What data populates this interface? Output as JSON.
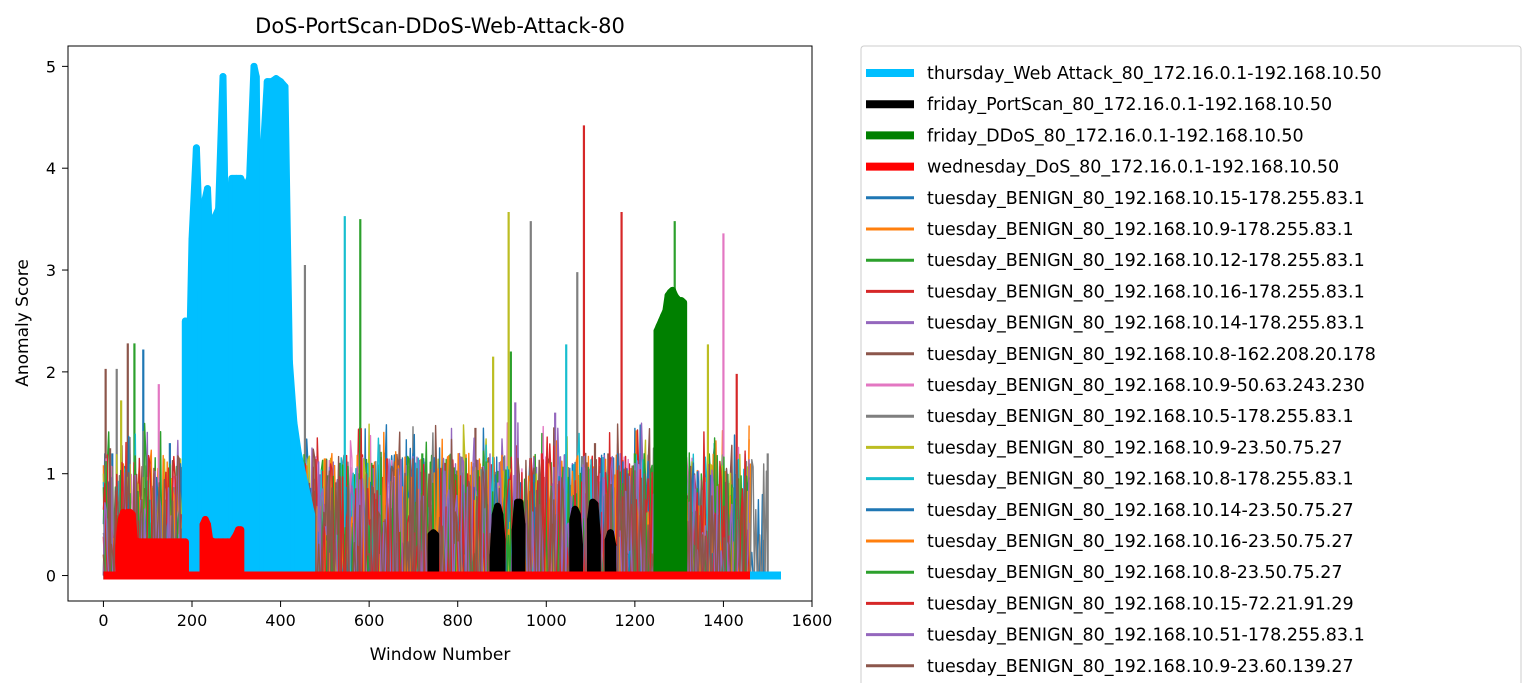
{
  "chart_data": {
    "type": "line",
    "title": "DoS-PortScan-DDoS-Web-Attack-80",
    "xlabel": "Window Number",
    "ylabel": "Anomaly Score",
    "xlim": [
      -80,
      1600
    ],
    "ylim": [
      -0.25,
      5.2
    ],
    "xticks": [
      0,
      200,
      400,
      600,
      800,
      1000,
      1200,
      1400,
      1600
    ],
    "yticks": [
      0,
      1,
      2,
      3,
      4,
      5
    ],
    "xtick_labels": [
      "0",
      "200",
      "400",
      "600",
      "800",
      "1000",
      "1200",
      "1400",
      "1600"
    ],
    "ytick_labels": [
      "0",
      "1",
      "2",
      "3",
      "4",
      "5"
    ],
    "grid": false,
    "legend_position": "outside-right",
    "attack_series": [
      {
        "name": "thursday_Web Attack_80_172.16.0.1-192.168.10.50",
        "color": "#00bfff",
        "baseline": {
          "x": [
            0,
            1530
          ],
          "y": [
            0,
            0
          ]
        },
        "spikes": [
          {
            "x": [
              185,
              190,
              200,
              210,
              215,
              220,
              230,
              235,
              240,
              250,
              260,
              270,
              275,
              280,
              290,
              300,
              310,
              320,
              330,
              340,
              345,
              350,
              360,
              370,
              380,
              390,
              400,
              410,
              420,
              430,
              440,
              450,
              460,
              470
            ],
            "y": [
              2.5,
              1.2,
              3.3,
              4.2,
              3.6,
              2.8,
              3.7,
              3.8,
              3.3,
              3.5,
              3.6,
              4.9,
              3.5,
              3.2,
              3.9,
              3.9,
              3.9,
              3.8,
              3.9,
              5.0,
              4.9,
              3.1,
              4.1,
              4.85,
              4.85,
              4.88,
              4.85,
              4.8,
              2.1,
              1.5,
              1.2,
              1.0,
              0.8,
              0.6
            ]
          }
        ]
      },
      {
        "name": "friday_PortScan_80_172.16.0.1-192.168.10.50",
        "color": "#000000",
        "baseline": {
          "x": [
            0,
            1460
          ],
          "y": [
            0,
            0
          ]
        },
        "spikes": [
          {
            "x": [
              740,
              745,
              750
            ],
            "y": [
              0.4,
              0.42,
              0.4
            ]
          },
          {
            "x": [
              880,
              885,
              890,
              895,
              900
            ],
            "y": [
              0.2,
              0.6,
              0.68,
              0.6,
              0.35
            ]
          },
          {
            "x": [
              930,
              935,
              940,
              945
            ],
            "y": [
              0.45,
              0.72,
              0.72,
              0.5
            ]
          },
          {
            "x": [
              1060,
              1065,
              1070,
              1075
            ],
            "y": [
              0.55,
              0.65,
              0.6,
              0.3
            ]
          },
          {
            "x": [
              1100,
              1105,
              1110,
              1115
            ],
            "y": [
              0.55,
              0.72,
              0.7,
              0.4
            ]
          },
          {
            "x": [
              1140,
              1145,
              1150
            ],
            "y": [
              0.35,
              0.42,
              0.3
            ]
          }
        ]
      },
      {
        "name": "friday_DDoS_80_172.16.0.1-192.168.10.50",
        "color": "#008000",
        "baseline": {
          "x": [
            0,
            1460
          ],
          "y": [
            0,
            0
          ]
        },
        "spikes": [
          {
            "x": [
              1250,
              1255,
              1260,
              1265,
              1270,
              1275,
              1280,
              1285,
              1290,
              1295,
              1300,
              1305,
              1310
            ],
            "y": [
              2.4,
              2.45,
              2.5,
              2.55,
              2.6,
              2.75,
              2.78,
              2.8,
              2.75,
              2.72,
              2.7,
              2.7,
              2.68
            ]
          }
        ]
      },
      {
        "name": "wednesday_DoS_80_172.16.0.1-192.168.10.50",
        "color": "#ff0000",
        "baseline": {
          "x": [
            0,
            1460
          ],
          "y": [
            0,
            0
          ]
        },
        "spikes": [
          {
            "x": [
              35,
              40,
              45,
              50,
              55,
              60,
              65,
              70,
              80,
              90,
              100,
              110,
              120,
              130,
              140,
              150,
              160,
              170,
              180,
              185
            ],
            "y": [
              0.3,
              0.55,
              0.62,
              0.6,
              0.62,
              0.62,
              0.6,
              0.35,
              0.33,
              0.33,
              0.33,
              0.33,
              0.33,
              0.33,
              0.33,
              0.33,
              0.33,
              0.33,
              0.33,
              0.33
            ]
          },
          {
            "x": [
              225,
              230,
              235,
              240,
              250,
              260,
              270,
              280,
              290,
              300,
              305,
              310
            ],
            "y": [
              0.5,
              0.55,
              0.5,
              0.35,
              0.33,
              0.33,
              0.33,
              0.33,
              0.33,
              0.4,
              0.45,
              0.45
            ]
          }
        ]
      }
    ],
    "benign_series": [
      {
        "name": "tuesday_BENIGN_80_192.168.10.15-178.255.83.1",
        "color": "#1f77b4",
        "x": [
          0,
          1500
        ],
        "peaks": [
          [
            90,
            2.22
          ],
          [
            20,
            1.2
          ],
          [
            300,
            1.1
          ],
          [
            1490,
            0.35
          ]
        ]
      },
      {
        "name": "tuesday_BENIGN_80_192.168.10.9-178.255.83.1",
        "color": "#ff7f0e",
        "x": [
          0,
          1460
        ],
        "peaks": [
          [
            40,
            1.2
          ],
          [
            200,
            1.0
          ],
          [
            600,
            1.1
          ],
          [
            850,
            1.1
          ],
          [
            1460,
            1.1
          ]
        ]
      },
      {
        "name": "tuesday_BENIGN_80_192.168.10.12-178.255.83.1",
        "color": "#2ca02c",
        "x": [
          0,
          1460
        ],
        "peaks": [
          [
            70,
            2.28
          ],
          [
            580,
            3.5
          ],
          [
            920,
            2.2
          ],
          [
            1290,
            3.48
          ]
        ]
      },
      {
        "name": "tuesday_BENIGN_80_192.168.10.16-178.255.83.1",
        "color": "#d62728",
        "x": [
          0,
          1430
        ],
        "peaks": [
          [
            1085,
            4.42
          ],
          [
            1170,
            3.57
          ],
          [
            1430,
            1.98
          ],
          [
            180,
            1.6
          ]
        ]
      },
      {
        "name": "tuesday_BENIGN_80_192.168.10.14-178.255.83.1",
        "color": "#9467bd",
        "x": [
          0,
          1460
        ],
        "peaks": [
          [
            1020,
            1.6
          ],
          [
            180,
            1.65
          ],
          [
            400,
            1.2
          ]
        ]
      },
      {
        "name": "tuesday_BENIGN_80_192.168.10.8-162.208.20.178",
        "color": "#8c564b",
        "x": [
          0,
          1460
        ],
        "peaks": [
          [
            55,
            2.28
          ],
          [
            5,
            2.03
          ],
          [
            840,
            1.45
          ],
          [
            1140,
            1.2
          ]
        ]
      },
      {
        "name": "tuesday_BENIGN_80_192.168.10.9-50.63.243.230",
        "color": "#e377c2",
        "x": [
          0,
          1460
        ],
        "peaks": [
          [
            1400,
            3.36
          ],
          [
            125,
            1.88
          ],
          [
            700,
            1.1
          ]
        ]
      },
      {
        "name": "tuesday_BENIGN_80_192.168.10.5-178.255.83.1",
        "color": "#7f7f7f",
        "x": [
          0,
          1500
        ],
        "peaks": [
          [
            455,
            3.05
          ],
          [
            965,
            3.48
          ],
          [
            1070,
            2.98
          ],
          [
            30,
            2.03
          ],
          [
            1500,
            1.2
          ]
        ]
      },
      {
        "name": "tuesday_BENIGN_80_192.168.10.9-23.50.75.27",
        "color": "#bcbd22",
        "x": [
          0,
          1460
        ],
        "peaks": [
          [
            915,
            3.57
          ],
          [
            880,
            2.15
          ],
          [
            1365,
            2.27
          ],
          [
            40,
            1.72
          ]
        ]
      },
      {
        "name": "tuesday_BENIGN_80_192.168.10.8-178.255.83.1",
        "color": "#17becf",
        "x": [
          0,
          1460
        ],
        "peaks": [
          [
            545,
            3.53
          ],
          [
            1045,
            2.27
          ],
          [
            1380,
            1.3
          ]
        ]
      },
      {
        "name": "tuesday_BENIGN_80_192.168.10.14-23.50.75.27",
        "color": "#1f77b4",
        "x": [
          0,
          1460
        ],
        "peaks": [
          [
            150,
            1.3
          ],
          [
            700,
            1.2
          ]
        ]
      },
      {
        "name": "tuesday_BENIGN_80_192.168.10.16-23.50.75.27",
        "color": "#ff7f0e",
        "x": [
          0,
          1460
        ],
        "peaks": [
          [
            1260,
            1.2
          ],
          [
            500,
            1.15
          ]
        ]
      },
      {
        "name": "tuesday_BENIGN_80_192.168.10.8-23.50.75.27",
        "color": "#2ca02c",
        "x": [
          0,
          1460
        ],
        "peaks": [
          [
            720,
            1.2
          ],
          [
            1200,
            1.2
          ]
        ]
      },
      {
        "name": "tuesday_BENIGN_80_192.168.10.15-72.21.91.29",
        "color": "#d62728",
        "x": [
          0,
          1460
        ],
        "peaks": [
          [
            640,
            1.15
          ],
          [
            990,
            1.2
          ]
        ]
      },
      {
        "name": "tuesday_BENIGN_80_192.168.10.51-178.255.83.1",
        "color": "#9467bd",
        "x": [
          0,
          1460
        ],
        "peaks": [
          [
            930,
            1.7
          ],
          [
            1310,
            1.3
          ]
        ]
      },
      {
        "name": "tuesday_BENIGN_80_192.168.10.9-23.60.139.27",
        "color": "#8c564b",
        "x": [
          0,
          1460
        ],
        "peaks": [
          [
            15,
            1.25
          ],
          [
            1110,
            1.3
          ]
        ]
      }
    ]
  }
}
